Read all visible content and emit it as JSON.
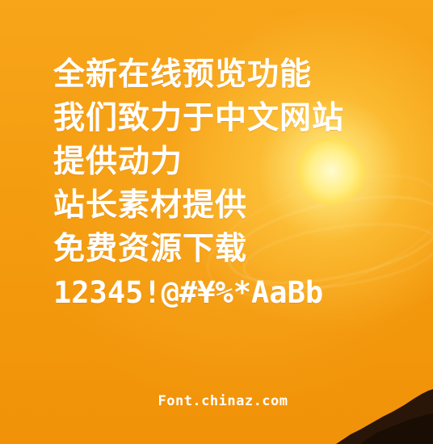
{
  "preview": {
    "lines": [
      "全新在线预览功能",
      "我们致力于中文网站",
      "提供动力",
      "站长素材提供",
      "免费资源下载",
      "12345!@#¥%*AaBb"
    ],
    "footer": "Font.chinaz.com"
  },
  "colors": {
    "background": "#f59a0c",
    "text": "#ffffff",
    "sun": "#fff3a0"
  }
}
